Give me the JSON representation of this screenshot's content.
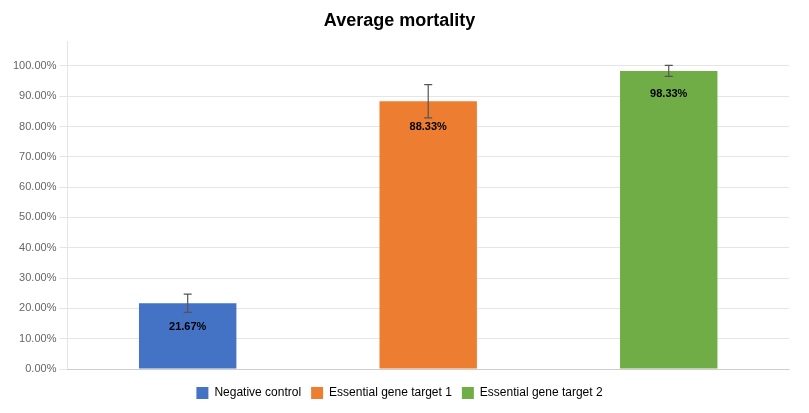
{
  "chart_data": {
    "type": "bar",
    "title": "Average mortality",
    "categories": [
      "Negative control",
      "Essential gene target 1",
      "Essential gene target 2"
    ],
    "values": [
      0.2167,
      0.8833,
      0.9833
    ],
    "errors": [
      0.03,
      0.055,
      0.018
    ],
    "value_labels": [
      "21.67%",
      "88.33%",
      "98.33%"
    ],
    "data_labels": true,
    "colors": [
      "#4472C4",
      "#ED7D31",
      "#70AD47"
    ],
    "ylim": [
      0,
      1.08
    ],
    "yticks": [
      {
        "value": 0.0,
        "label": "0.00%"
      },
      {
        "value": 0.1,
        "label": "10.00%"
      },
      {
        "value": 0.2,
        "label": "20.00%"
      },
      {
        "value": 0.3,
        "label": "30.00%"
      },
      {
        "value": 0.4,
        "label": "40.00%"
      },
      {
        "value": 0.5,
        "label": "50.00%"
      },
      {
        "value": 0.6,
        "label": "60.00%"
      },
      {
        "value": 0.7,
        "label": "70.00%"
      },
      {
        "value": 0.8,
        "label": "80.00%"
      },
      {
        "value": 0.9,
        "label": "90.00%"
      },
      {
        "value": 1.0,
        "label": "100.00%"
      }
    ],
    "grid": true,
    "legend": "bottom",
    "tick_labels": "y"
  }
}
